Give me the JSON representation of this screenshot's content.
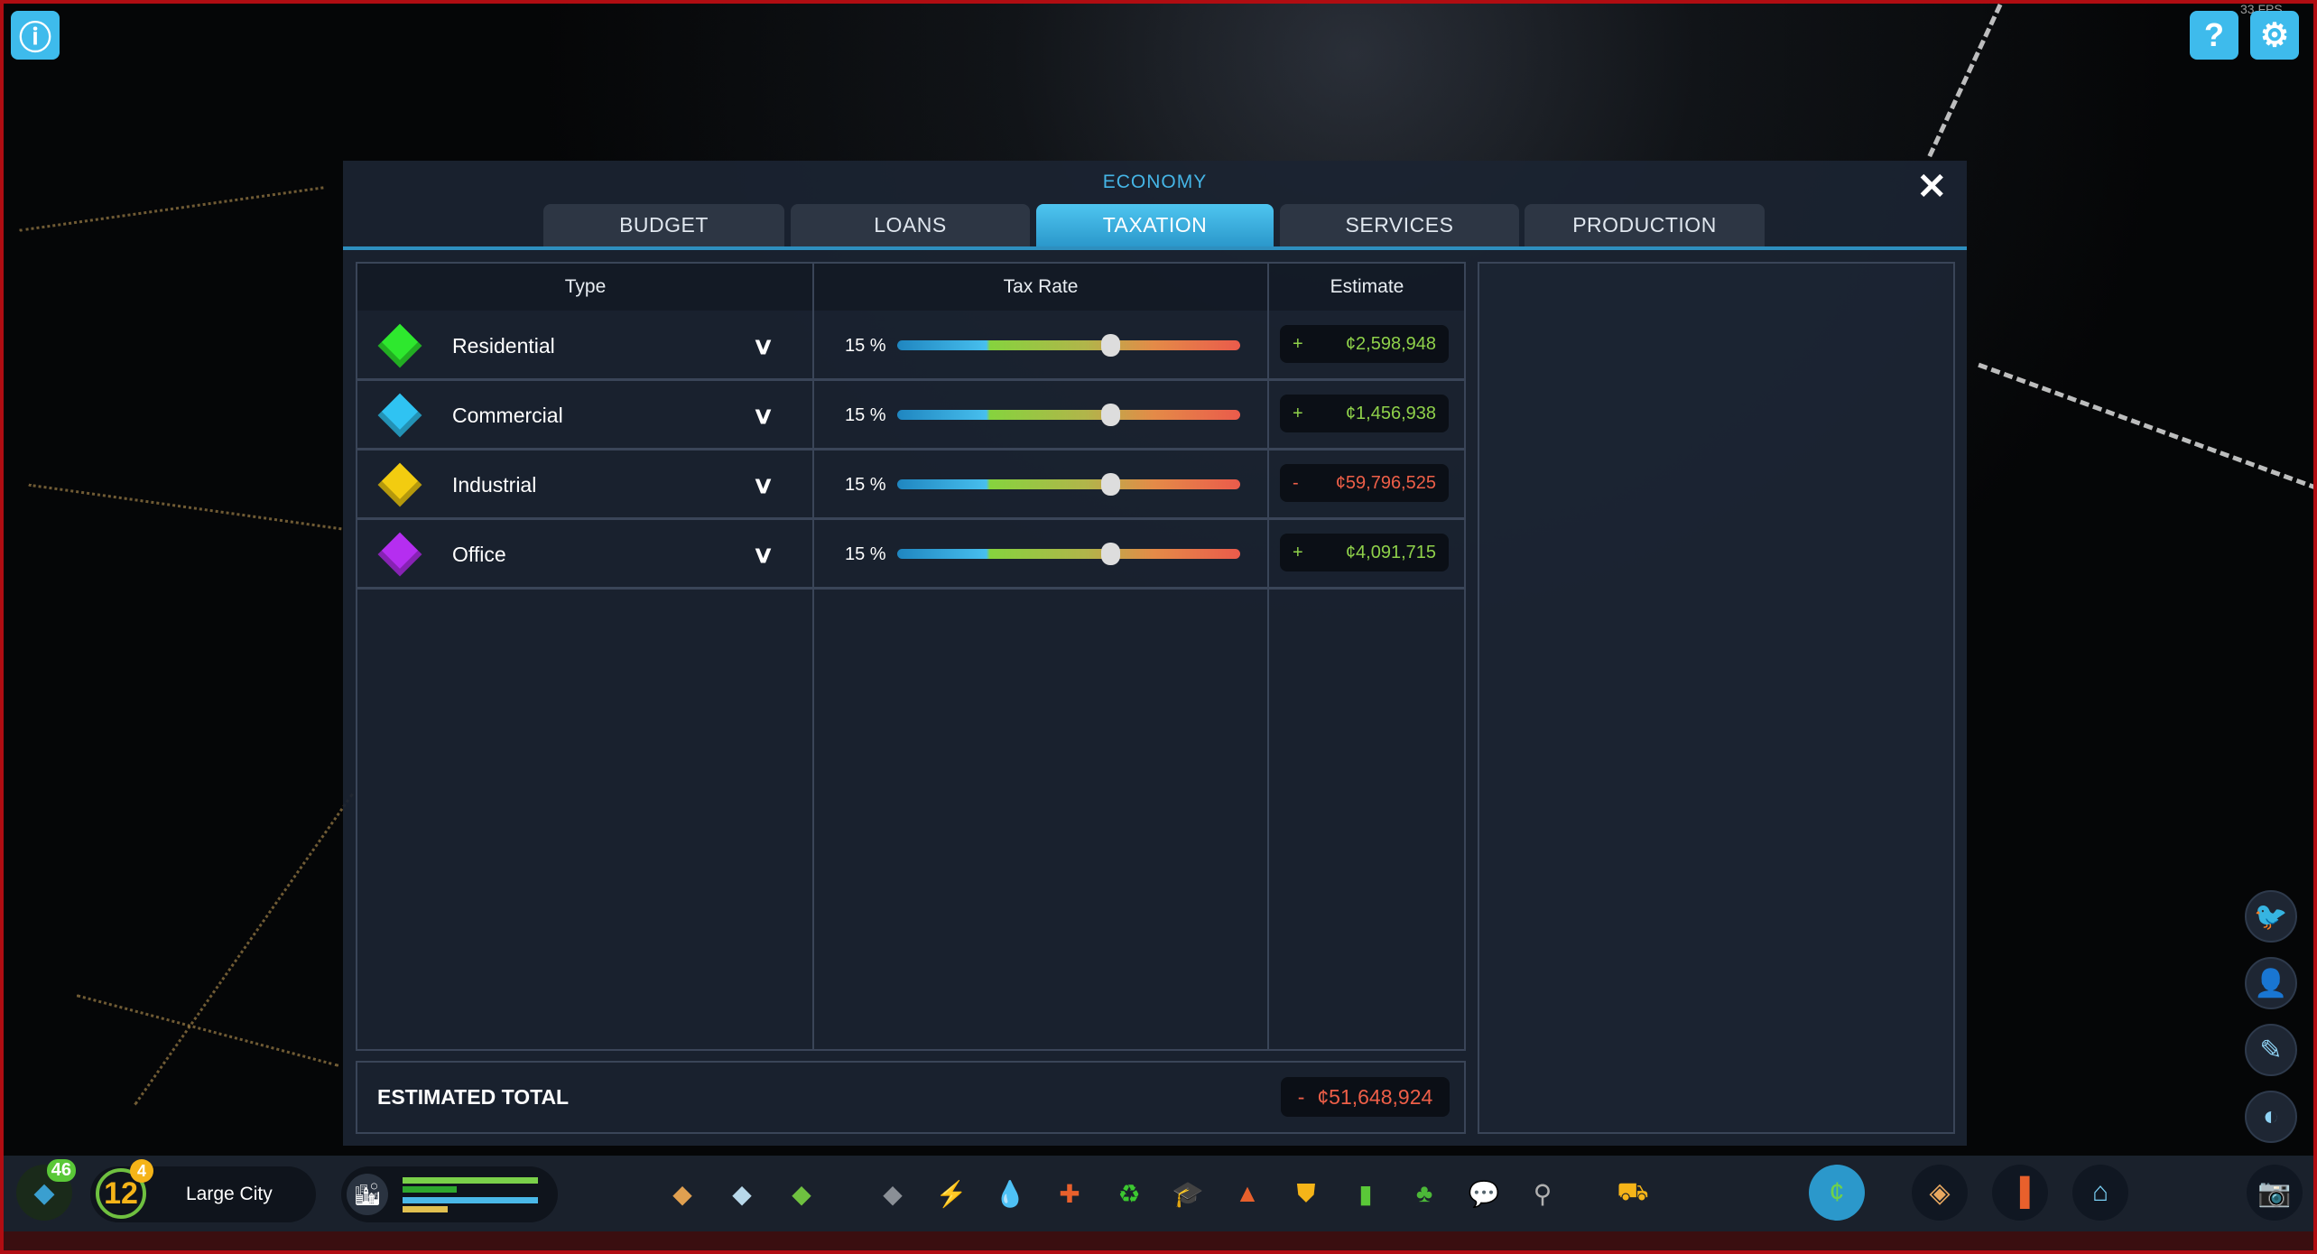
{
  "hud": {
    "fps": "33 FPS",
    "info_icon": "info-icon",
    "help_icon": "help-icon",
    "settings_icon": "gear-icon"
  },
  "economy": {
    "title": "ECONOMY",
    "tabs": [
      {
        "label": "BUDGET"
      },
      {
        "label": "LOANS"
      },
      {
        "label": "TAXATION",
        "active": true
      },
      {
        "label": "SERVICES"
      },
      {
        "label": "PRODUCTION"
      }
    ],
    "table": {
      "headers": {
        "type": "Type",
        "tax_rate": "Tax Rate",
        "estimate": "Estimate"
      },
      "rows": [
        {
          "name": "Residential",
          "rate": "15 %",
          "slider_fraction": 0.62,
          "sign": "+",
          "estimate": "¢2,598,948",
          "color": "#2ee82e",
          "est_color": "#8fd14a"
        },
        {
          "name": "Commercial",
          "rate": "15 %",
          "slider_fraction": 0.62,
          "sign": "+",
          "estimate": "¢1,456,938",
          "color": "#2fc3f2",
          "est_color": "#8fd14a"
        },
        {
          "name": "Industrial",
          "rate": "15 %",
          "slider_fraction": 0.62,
          "sign": "-",
          "estimate": "¢59,796,525",
          "color": "#f2cc10",
          "est_color": "#ee5f48"
        },
        {
          "name": "Office",
          "rate": "15 %",
          "slider_fraction": 0.62,
          "sign": "+",
          "estimate": "¢4,091,715",
          "color": "#b52ef0",
          "est_color": "#8fd14a"
        }
      ]
    },
    "total": {
      "label": "ESTIMATED TOTAL",
      "sign": "-",
      "value": "¢51,648,924"
    }
  },
  "bottom_bar": {
    "development_points": "46",
    "milestone_level": "12",
    "milestone_badge": "4",
    "city_size": "Large City",
    "tools": [
      {
        "name": "zoning-icon",
        "glyph": "◆",
        "color": "#e0a050"
      },
      {
        "name": "area-icon",
        "glyph": "◆",
        "color": "#b8d8ea"
      },
      {
        "name": "landscaping-icon",
        "glyph": "◆",
        "color": "#6fc040"
      },
      {
        "name": "roads-icon",
        "glyph": "◆",
        "color": "#8a8f96"
      },
      {
        "name": "electricity-icon",
        "glyph": "⚡",
        "color": "#f5b418"
      },
      {
        "name": "water-icon",
        "glyph": "💧",
        "color": "#3cb8ef"
      },
      {
        "name": "health-icon",
        "glyph": "✚",
        "color": "#e8602c"
      },
      {
        "name": "garbage-icon",
        "glyph": "♻",
        "color": "#3cc830"
      },
      {
        "name": "education-icon",
        "glyph": "🎓",
        "color": "#a0b4c8"
      },
      {
        "name": "fire-icon",
        "glyph": "▲",
        "color": "#e8602c"
      },
      {
        "name": "police-icon",
        "glyph": "⛊",
        "color": "#f5b418"
      },
      {
        "name": "transport-icon",
        "glyph": "▮",
        "color": "#5ac838"
      },
      {
        "name": "parks-icon",
        "glyph": "♣",
        "color": "#4cb838"
      },
      {
        "name": "communications-icon",
        "glyph": "💬",
        "color": "#ffffff"
      },
      {
        "name": "shovel-icon",
        "glyph": "⚲",
        "color": "#b0b0b0"
      },
      {
        "name": "bulldozer-icon",
        "glyph": "⛟",
        "color": "#f5b418"
      }
    ],
    "right_buttons": [
      {
        "name": "economy-icon",
        "glyph": "¢",
        "color": "#6fd14a"
      },
      {
        "name": "map-icon",
        "glyph": "◈",
        "color": "#e8a860"
      },
      {
        "name": "statistics-icon",
        "glyph": "▐",
        "color": "#e8602c"
      },
      {
        "name": "progression-icon",
        "glyph": "⌂",
        "color": "#7ad0f5"
      }
    ],
    "camera_icon": "camera-icon"
  },
  "side_buttons": [
    {
      "name": "chirper-icon",
      "glyph": "🐦"
    },
    {
      "name": "citizen-icon",
      "glyph": "👤"
    },
    {
      "name": "notes-icon",
      "glyph": "✎"
    },
    {
      "name": "radio-icon",
      "glyph": "◐"
    }
  ]
}
